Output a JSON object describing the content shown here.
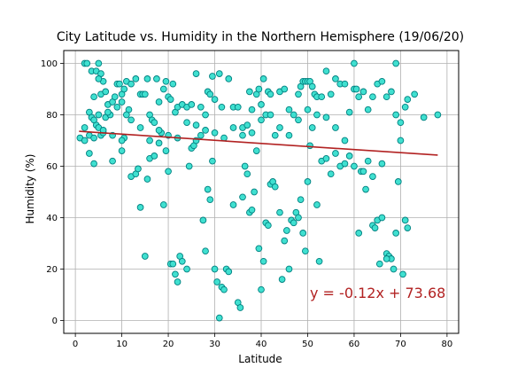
{
  "chart_data": {
    "type": "scatter",
    "title": "City Latitude vs. Humidity in the Northern Hemisphere (19/06/20)",
    "xlabel": "Latitude",
    "ylabel": "Humidity (%)",
    "xlim": [
      -2.5,
      82.5
    ],
    "ylim": [
      -5,
      105
    ],
    "xticks": [
      0,
      10,
      20,
      30,
      40,
      50,
      60,
      70,
      80
    ],
    "yticks": [
      0,
      20,
      40,
      60,
      80,
      100
    ],
    "grid": true,
    "colors": {
      "point_fill": "#40e0d0",
      "point_edge": "#008080",
      "regression": "#b22222"
    },
    "regression": {
      "slope": -0.12,
      "intercept": 73.68,
      "x_range": [
        0.8,
        78
      ]
    },
    "annotation": "y = -0.12x + 73.68",
    "points": [
      [
        2,
        100
      ],
      [
        2.5,
        100
      ],
      [
        3.5,
        97
      ],
      [
        4.5,
        97
      ],
      [
        5,
        100
      ],
      [
        5.5,
        96
      ],
      [
        6,
        93
      ],
      [
        5,
        94
      ],
      [
        4,
        87
      ],
      [
        5.5,
        88
      ],
      [
        6.5,
        89
      ],
      [
        3,
        81
      ],
      [
        3.5,
        79
      ],
      [
        4.5,
        76
      ],
      [
        5,
        75
      ],
      [
        3,
        72
      ],
      [
        4,
        71
      ],
      [
        2,
        75
      ],
      [
        1,
        71
      ],
      [
        3,
        65
      ],
      [
        4,
        61
      ],
      [
        5.5,
        72
      ],
      [
        6,
        73
      ],
      [
        5,
        80
      ],
      [
        6.5,
        79
      ],
      [
        7.5,
        80
      ],
      [
        7,
        84
      ],
      [
        8,
        85
      ],
      [
        8.5,
        87
      ],
      [
        9,
        92
      ],
      [
        9.5,
        92
      ],
      [
        10,
        88
      ],
      [
        10.5,
        90
      ],
      [
        11,
        93
      ],
      [
        11.5,
        82
      ],
      [
        10,
        85
      ],
      [
        9,
        83
      ],
      [
        7,
        81
      ],
      [
        8,
        62
      ],
      [
        10,
        66
      ],
      [
        10.5,
        71
      ],
      [
        11,
        80
      ],
      [
        12,
        92
      ],
      [
        13,
        94
      ],
      [
        14,
        88
      ],
      [
        14.5,
        88
      ],
      [
        15,
        88
      ],
      [
        15.5,
        94
      ],
      [
        16,
        80
      ],
      [
        16.5,
        78
      ],
      [
        17,
        77
      ],
      [
        17.5,
        94
      ],
      [
        18,
        85
      ],
      [
        19,
        90
      ],
      [
        19.5,
        93
      ],
      [
        20,
        87
      ],
      [
        20.5,
        86
      ],
      [
        21,
        92
      ],
      [
        21.5,
        81
      ],
      [
        22,
        83
      ],
      [
        23,
        84
      ],
      [
        24,
        83
      ],
      [
        25,
        84
      ],
      [
        26,
        96
      ],
      [
        27,
        83
      ],
      [
        28,
        80
      ],
      [
        28.5,
        89
      ],
      [
        29,
        88
      ],
      [
        29.5,
        95
      ],
      [
        30,
        86
      ],
      [
        31,
        96
      ],
      [
        31.5,
        83
      ],
      [
        33,
        94
      ],
      [
        34,
        83
      ],
      [
        35,
        83
      ],
      [
        36,
        75
      ],
      [
        37,
        76
      ],
      [
        37.5,
        89
      ],
      [
        38,
        82
      ],
      [
        39,
        88
      ],
      [
        39.5,
        90
      ],
      [
        40,
        84
      ],
      [
        40.5,
        94
      ],
      [
        41,
        80
      ],
      [
        41.5,
        89
      ],
      [
        42,
        88
      ],
      [
        43,
        72
      ],
      [
        44,
        89
      ],
      [
        45,
        90
      ],
      [
        46,
        82
      ],
      [
        47,
        80
      ],
      [
        48,
        88
      ],
      [
        48.5,
        91
      ],
      [
        49,
        93
      ],
      [
        49.5,
        93
      ],
      [
        50,
        93
      ],
      [
        50.5,
        93
      ],
      [
        51,
        91
      ],
      [
        51.5,
        88
      ],
      [
        52,
        87
      ],
      [
        53,
        87
      ],
      [
        54,
        97
      ],
      [
        55,
        88
      ],
      [
        56,
        94
      ],
      [
        57,
        92
      ],
      [
        58,
        92
      ],
      [
        59,
        81
      ],
      [
        60,
        90
      ],
      [
        60.5,
        90
      ],
      [
        61,
        87
      ],
      [
        62,
        89
      ],
      [
        63,
        82
      ],
      [
        64,
        87
      ],
      [
        65,
        92
      ],
      [
        66,
        93
      ],
      [
        67,
        87
      ],
      [
        68,
        89
      ],
      [
        69,
        80
      ],
      [
        70,
        77
      ],
      [
        71,
        83
      ],
      [
        71.5,
        86
      ],
      [
        73,
        88
      ],
      [
        75,
        79
      ],
      [
        78,
        80
      ],
      [
        12,
        56
      ],
      [
        13,
        57
      ],
      [
        13.5,
        59
      ],
      [
        14,
        44
      ],
      [
        15,
        25
      ],
      [
        15.5,
        55
      ],
      [
        16,
        63
      ],
      [
        17,
        64
      ],
      [
        18,
        69
      ],
      [
        18.5,
        73
      ],
      [
        19,
        45
      ],
      [
        19.5,
        66
      ],
      [
        20,
        58
      ],
      [
        20.5,
        22
      ],
      [
        21,
        22
      ],
      [
        21.5,
        18
      ],
      [
        22,
        15
      ],
      [
        22.5,
        25
      ],
      [
        23,
        23
      ],
      [
        24,
        20
      ],
      [
        24.5,
        60
      ],
      [
        25,
        67
      ],
      [
        25.5,
        68
      ],
      [
        26,
        70
      ],
      [
        27,
        72
      ],
      [
        27.5,
        39
      ],
      [
        28,
        27
      ],
      [
        28.5,
        51
      ],
      [
        29,
        47
      ],
      [
        29.5,
        62
      ],
      [
        30,
        20
      ],
      [
        30.5,
        15
      ],
      [
        31,
        1
      ],
      [
        31.5,
        13
      ],
      [
        32,
        12
      ],
      [
        32.5,
        20
      ],
      [
        33,
        19
      ],
      [
        34,
        45
      ],
      [
        35,
        7
      ],
      [
        35.5,
        5
      ],
      [
        36,
        48
      ],
      [
        36.5,
        60
      ],
      [
        37,
        57
      ],
      [
        37.5,
        42
      ],
      [
        38,
        43
      ],
      [
        38.5,
        50
      ],
      [
        39,
        66
      ],
      [
        39.5,
        28
      ],
      [
        40,
        12
      ],
      [
        40.5,
        23
      ],
      [
        41,
        38
      ],
      [
        41.5,
        37
      ],
      [
        42,
        53
      ],
      [
        42.5,
        54
      ],
      [
        43,
        52
      ],
      [
        44,
        42
      ],
      [
        44.5,
        16
      ],
      [
        45,
        31
      ],
      [
        45.5,
        35
      ],
      [
        46,
        20
      ],
      [
        46.5,
        39
      ],
      [
        47,
        38
      ],
      [
        47.5,
        42
      ],
      [
        48,
        40
      ],
      [
        48.5,
        47
      ],
      [
        49,
        34
      ],
      [
        49.5,
        27
      ],
      [
        50,
        54
      ],
      [
        50.5,
        68
      ],
      [
        51,
        75
      ],
      [
        52,
        45
      ],
      [
        52.5,
        23
      ],
      [
        53,
        62
      ],
      [
        54,
        63
      ],
      [
        55,
        57
      ],
      [
        56,
        65
      ],
      [
        57,
        60
      ],
      [
        58,
        61
      ],
      [
        59,
        64
      ],
      [
        60,
        100
      ],
      [
        61,
        34
      ],
      [
        61.5,
        58
      ],
      [
        62,
        58
      ],
      [
        62.5,
        51
      ],
      [
        63,
        62
      ],
      [
        64,
        37
      ],
      [
        64.5,
        36
      ],
      [
        65,
        39
      ],
      [
        65.5,
        22
      ],
      [
        66,
        40
      ],
      [
        67,
        26
      ],
      [
        67.5,
        25
      ],
      [
        68,
        24
      ],
      [
        68.5,
        20
      ],
      [
        69,
        34
      ],
      [
        69.5,
        54
      ],
      [
        70,
        70
      ],
      [
        70.5,
        18
      ],
      [
        71,
        39
      ],
      [
        71.5,
        36
      ],
      [
        69,
        100
      ],
      [
        67,
        24
      ],
      [
        66,
        61
      ],
      [
        64,
        56
      ],
      [
        60,
        60
      ],
      [
        58,
        70
      ],
      [
        56,
        75
      ],
      [
        54,
        79
      ],
      [
        52,
        80
      ],
      [
        50,
        82
      ],
      [
        48,
        78
      ],
      [
        46,
        72
      ],
      [
        44,
        75
      ],
      [
        42,
        80
      ],
      [
        40,
        78
      ],
      [
        38,
        73
      ],
      [
        36,
        72
      ],
      [
        34,
        75
      ],
      [
        32,
        71
      ],
      [
        30,
        73
      ],
      [
        28,
        74
      ],
      [
        26,
        76
      ],
      [
        24,
        77
      ],
      [
        22,
        71
      ],
      [
        20,
        72
      ],
      [
        18,
        74
      ],
      [
        16,
        70
      ],
      [
        14,
        75
      ],
      [
        12,
        78
      ],
      [
        10,
        70
      ],
      [
        8,
        72
      ],
      [
        6,
        74
      ],
      [
        4,
        78
      ],
      [
        2,
        70
      ]
    ]
  }
}
